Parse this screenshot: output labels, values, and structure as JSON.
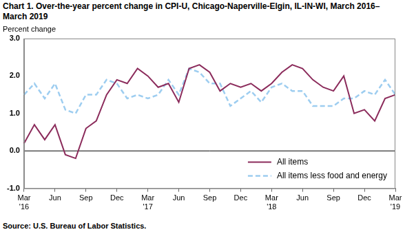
{
  "chart_data": {
    "type": "line",
    "title": "Chart 1. Over-the-year percent change in CPI-U, Chicago-Naperville-Elgin, IL-IN-WI, March 2016–March 2019",
    "y_label": "Percent change",
    "source": "Source: U.S. Bureau of Labor Statistics.",
    "categories": [
      "Mar '16",
      null,
      null,
      "Jun",
      null,
      null,
      "Sep",
      null,
      null,
      "Dec",
      null,
      null,
      "Mar '17",
      null,
      null,
      "Jun",
      null,
      null,
      "Sep",
      null,
      null,
      "Dec",
      null,
      null,
      "Mar '18",
      null,
      null,
      "Jun",
      null,
      null,
      "Sep",
      null,
      null,
      "Dec",
      null,
      null,
      "Mar '19"
    ],
    "series": [
      {
        "name": "All items",
        "color": "#8b2b5b",
        "line_style": "solid",
        "values": [
          0.2,
          0.7,
          0.3,
          0.7,
          -0.1,
          -0.2,
          0.6,
          0.8,
          1.5,
          1.9,
          1.8,
          2.2,
          2.0,
          1.7,
          1.8,
          1.3,
          2.2,
          2.3,
          2.1,
          1.6,
          1.8,
          1.7,
          1.8,
          1.6,
          1.8,
          2.1,
          2.3,
          2.2,
          1.9,
          1.7,
          1.6,
          2.0,
          1.0,
          1.1,
          0.8,
          1.4,
          1.5
        ]
      },
      {
        "name": "All items less food and energy",
        "color": "#9dcdf0",
        "line_style": "dashed",
        "values": [
          1.5,
          1.8,
          1.4,
          1.8,
          1.1,
          1.0,
          1.5,
          1.5,
          1.9,
          1.8,
          1.4,
          1.5,
          1.4,
          1.5,
          1.9,
          1.5,
          2.2,
          2.1,
          1.8,
          1.8,
          1.2,
          1.4,
          1.6,
          1.3,
          1.7,
          1.8,
          1.6,
          1.6,
          1.2,
          1.2,
          1.2,
          1.4,
          1.4,
          1.6,
          1.5,
          1.9,
          1.5
        ]
      }
    ],
    "ylim": [
      -1,
      3
    ],
    "yticks": [
      {
        "value": -1,
        "label": "-1.0"
      },
      {
        "value": 0,
        "label": "0.0"
      },
      {
        "value": 1,
        "label": "1.0"
      },
      {
        "value": 2,
        "label": "2.0"
      },
      {
        "value": 3,
        "label": "3.0"
      }
    ],
    "grid": false,
    "legend": "lower right"
  }
}
